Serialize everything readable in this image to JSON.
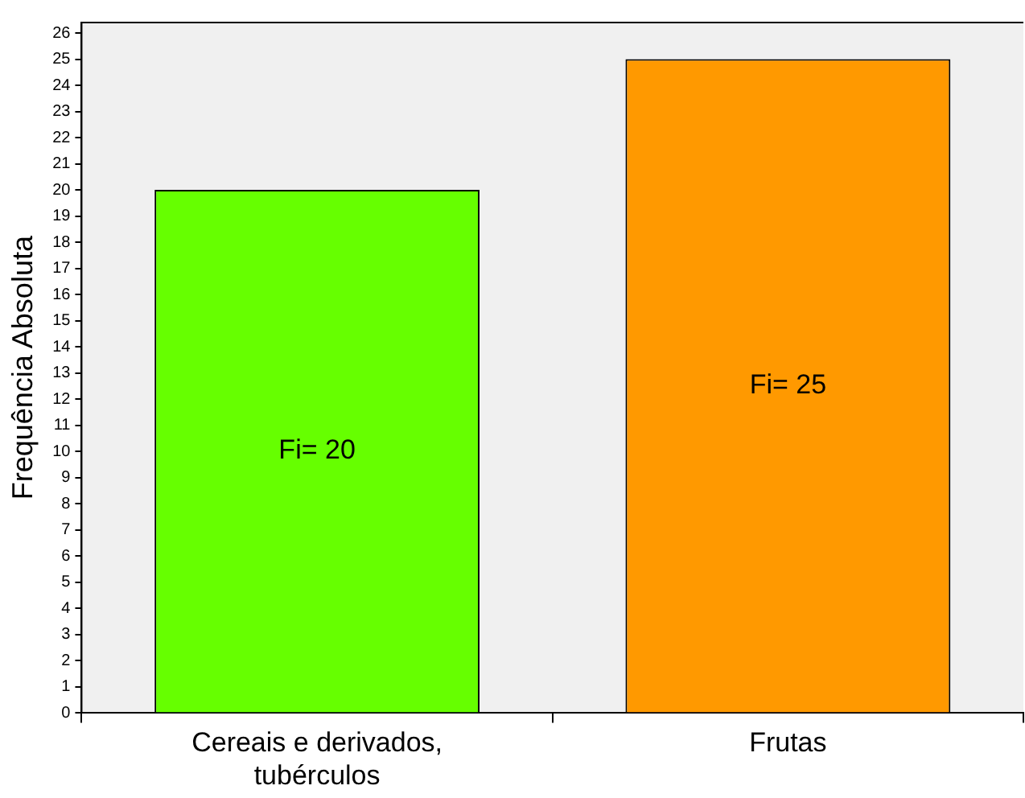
{
  "chart_data": {
    "type": "bar",
    "ylabel": "Frequência Absoluta",
    "categories": [
      "Cereais e derivados, tubérculos",
      "Frutas"
    ],
    "values": [
      20,
      25
    ],
    "colors": [
      "#66ff00",
      "#ff9900"
    ],
    "value_labels": [
      "Fi= 20",
      "Fi= 25"
    ],
    "ylim": [
      0,
      26.4
    ],
    "yticks": [
      0,
      1,
      2,
      3,
      4,
      5,
      6,
      7,
      8,
      9,
      10,
      11,
      12,
      13,
      14,
      15,
      16,
      17,
      18,
      19,
      20,
      21,
      22,
      23,
      24,
      25,
      26
    ],
    "legend": false
  }
}
